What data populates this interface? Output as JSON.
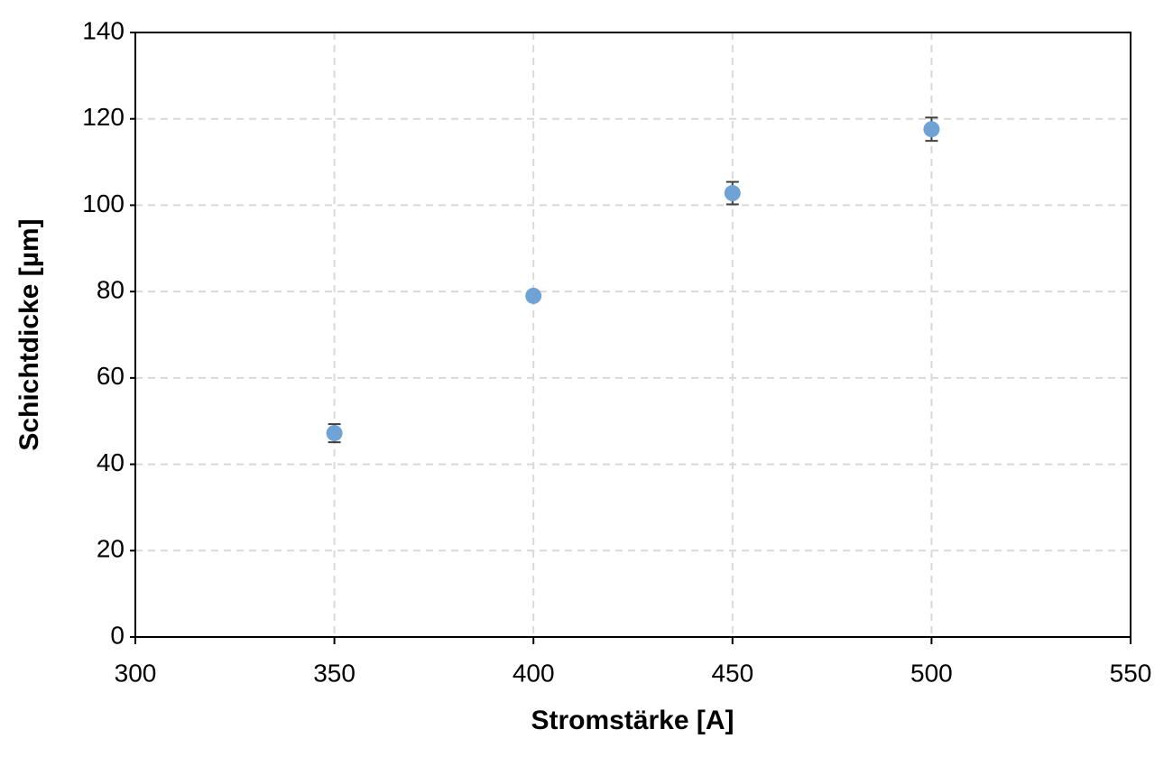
{
  "chart_data": {
    "type": "scatter",
    "x_label": "Stromstärke [A]",
    "y_label": "Schichtdicke [µm]",
    "series": [
      {
        "color": "#6fa3d6",
        "x": [
          350,
          400,
          450,
          500
        ],
        "values": [
          47.2,
          79.0,
          102.8,
          117.6
        ],
        "errors": [
          2.1,
          0.8,
          2.6,
          2.7
        ]
      }
    ],
    "xlim": [
      300,
      550
    ],
    "xticks": [
      300,
      350,
      400,
      450,
      500,
      550
    ],
    "ylim": [
      0,
      140
    ],
    "yticks": [
      0,
      20,
      40,
      60,
      80,
      100,
      120,
      140
    ],
    "grid": true
  }
}
